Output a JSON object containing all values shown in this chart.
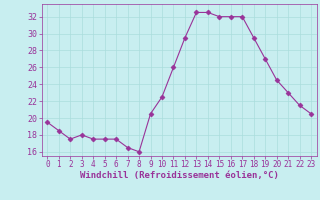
{
  "x": [
    0,
    1,
    2,
    3,
    4,
    5,
    6,
    7,
    8,
    9,
    10,
    11,
    12,
    13,
    14,
    15,
    16,
    17,
    18,
    19,
    20,
    21,
    22,
    23
  ],
  "y": [
    19.5,
    18.5,
    17.5,
    18.0,
    17.5,
    17.5,
    17.5,
    16.5,
    16.0,
    20.5,
    22.5,
    26.0,
    29.5,
    32.5,
    32.5,
    32.0,
    32.0,
    32.0,
    29.5,
    27.0,
    24.5,
    23.0,
    21.5,
    20.5
  ],
  "line_color": "#993399",
  "marker": "D",
  "marker_size": 2.5,
  "bg_color": "#c8eef0",
  "grid_color": "#aadddd",
  "xlabel": "Windchill (Refroidissement éolien,°C)",
  "xlabel_color": "#993399",
  "tick_color": "#993399",
  "ytick_values": [
    16,
    18,
    20,
    22,
    24,
    26,
    28,
    30,
    32
  ],
  "ylim": [
    15.5,
    33.5
  ],
  "xlim": [
    -0.5,
    23.5
  ],
  "xlabel_fontsize": 6.5,
  "tick_fontsize": 5.5,
  "ytick_fontsize": 6.0
}
